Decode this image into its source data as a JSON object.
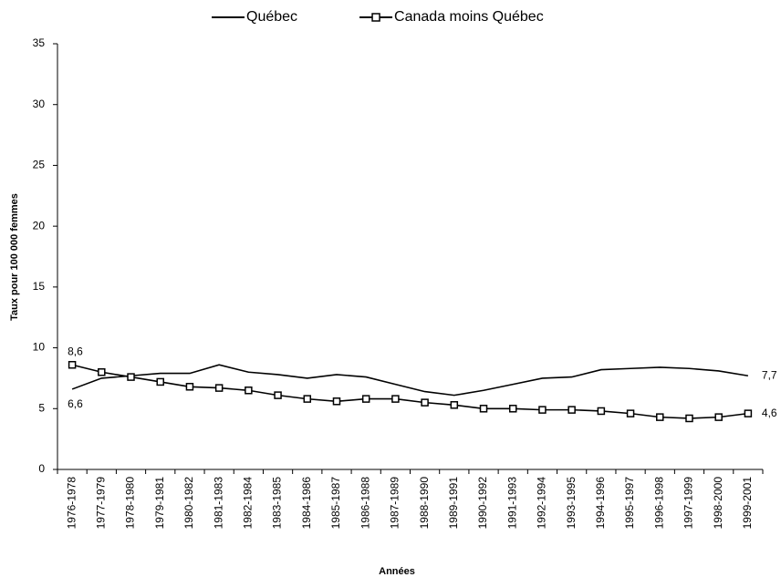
{
  "chart_data": {
    "type": "line",
    "x_label": "Années",
    "y_label": "Taux pour 100 000 femmes",
    "categories": [
      "1976-1978",
      "1977-1979",
      "1978-1980",
      "1979-1981",
      "1980-1982",
      "1981-1983",
      "1982-1984",
      "1983-1985",
      "1984-1986",
      "1985-1987",
      "1986-1988",
      "1987-1989",
      "1988-1990",
      "1989-1991",
      "1990-1992",
      "1991-1993",
      "1992-1994",
      "1993-1995",
      "1994-1996",
      "1995-1997",
      "1996-1998",
      "1997-1999",
      "1998-2000",
      "1999-2001"
    ],
    "series": [
      {
        "name": "Québec",
        "color": "#000000",
        "marker": "none",
        "values": [
          6.6,
          7.5,
          7.7,
          7.9,
          7.9,
          8.6,
          8.0,
          7.8,
          7.5,
          7.8,
          7.6,
          7.0,
          6.4,
          6.1,
          6.5,
          7.0,
          7.5,
          7.6,
          8.2,
          8.3,
          8.4,
          8.3,
          8.1,
          7.7
        ],
        "value_labels": [
          "6,6",
          null,
          null,
          null,
          null,
          null,
          null,
          null,
          null,
          null,
          null,
          null,
          null,
          null,
          null,
          null,
          null,
          null,
          null,
          null,
          null,
          null,
          null,
          "7,7"
        ]
      },
      {
        "name": "Canada moins Québec",
        "color": "#000000",
        "marker": "square",
        "values": [
          8.6,
          8.0,
          7.6,
          7.2,
          6.8,
          6.7,
          6.5,
          6.1,
          5.8,
          5.6,
          5.8,
          5.8,
          5.5,
          5.3,
          5.0,
          5.0,
          4.9,
          4.9,
          4.8,
          4.6,
          4.3,
          4.2,
          4.3,
          4.6
        ],
        "value_labels": [
          "8,6",
          null,
          null,
          null,
          null,
          null,
          null,
          null,
          null,
          null,
          null,
          null,
          null,
          null,
          null,
          null,
          null,
          null,
          null,
          null,
          null,
          null,
          null,
          "4,6"
        ]
      }
    ],
    "ylim": [
      0,
      35
    ],
    "yticks": [
      0,
      5,
      10,
      15,
      20,
      25,
      30,
      35
    ],
    "grid": false,
    "legend": "top"
  }
}
